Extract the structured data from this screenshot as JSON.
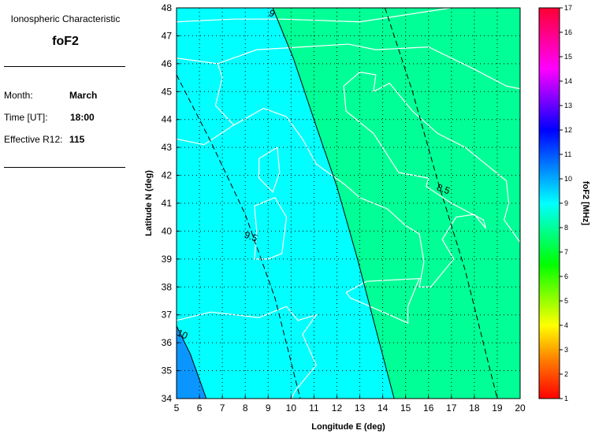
{
  "info": {
    "heading": "Ionospheric Characteristic",
    "characteristic": "foF2",
    "month_label": "Month:",
    "month_value": "March",
    "time_label": "Time [UT]:",
    "time_value": "18:00",
    "r12_label": "Effective R12:",
    "r12_value": "115"
  },
  "chart_data": {
    "type": "heatmap",
    "xlabel": "Longitude E (deg)",
    "ylabel": "Latitude N (deg)",
    "xlim": [
      5,
      20
    ],
    "ylim": [
      34,
      48
    ],
    "xticks": [
      5,
      6,
      7,
      8,
      9,
      10,
      11,
      12,
      13,
      14,
      15,
      16,
      17,
      18,
      19,
      20
    ],
    "yticks": [
      34,
      35,
      36,
      37,
      38,
      39,
      40,
      41,
      42,
      43,
      44,
      45,
      46,
      47,
      48
    ],
    "grid": true,
    "contours": [
      {
        "level": "10",
        "style": "solid",
        "points": [
          [
            5,
            36.6
          ],
          [
            5.6,
            35.6
          ],
          [
            6.3,
            34
          ]
        ]
      },
      {
        "level": "9.5",
        "style": "dashed",
        "points": [
          [
            5,
            45.6
          ],
          [
            6.5,
            43.2
          ],
          [
            8,
            40.6
          ],
          [
            9.3,
            37.6
          ],
          [
            10.4,
            34
          ]
        ]
      },
      {
        "level": "9",
        "style": "solid",
        "points": [
          [
            9.2,
            48
          ],
          [
            10.1,
            46.2
          ],
          [
            11,
            44
          ],
          [
            12,
            41.6
          ],
          [
            12.9,
            39
          ],
          [
            13.6,
            36.8
          ],
          [
            14.5,
            34
          ]
        ]
      },
      {
        "level": "8.5",
        "style": "dashed",
        "points": [
          [
            14.1,
            48
          ],
          [
            15.3,
            45
          ],
          [
            16.4,
            41.8
          ],
          [
            17.6,
            38.6
          ],
          [
            19,
            34
          ]
        ]
      }
    ],
    "region_colors": {
      "above_10": "#0b96ff",
      "9_to_10": "#00ffff",
      "8_to_9": "#00ff96"
    },
    "colorbar": {
      "label": "foF2 [MHz]",
      "range": [
        1,
        17
      ],
      "ticks": [
        1,
        2,
        3,
        4,
        5,
        6,
        7,
        8,
        9,
        10,
        11,
        12,
        13,
        14,
        15,
        16,
        17
      ],
      "stops": [
        [
          1,
          "#ff0000"
        ],
        [
          2.5,
          "#ff7700"
        ],
        [
          4,
          "#ffff00"
        ],
        [
          6.5,
          "#00ff00"
        ],
        [
          9,
          "#00ffff"
        ],
        [
          12,
          "#0000ff"
        ],
        [
          14.5,
          "#ff00ff"
        ],
        [
          17,
          "#ff0033"
        ]
      ]
    }
  }
}
